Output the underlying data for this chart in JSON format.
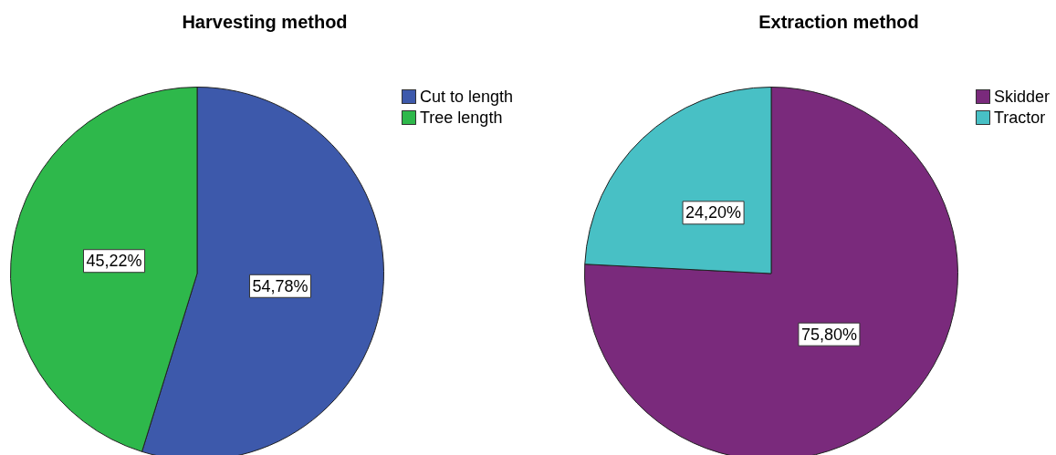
{
  "chart_data": [
    {
      "type": "pie",
      "title": "Harvesting method",
      "categories": [
        "Cut to length",
        "Tree length"
      ],
      "values": [
        54.78,
        45.22
      ],
      "colors": [
        "#3d59ab",
        "#2eb84b"
      ],
      "value_labels": [
        "54,78%",
        "45,22%"
      ],
      "legend": "top right"
    },
    {
      "type": "pie",
      "title": "Extraction method",
      "categories": [
        "Skidder",
        "Tractor"
      ],
      "values": [
        75.8,
        24.2
      ],
      "colors": [
        "#7a2a7c",
        "#48c0c5"
      ],
      "value_labels": [
        "75,80%",
        "24,20%"
      ],
      "legend": "top right"
    }
  ]
}
